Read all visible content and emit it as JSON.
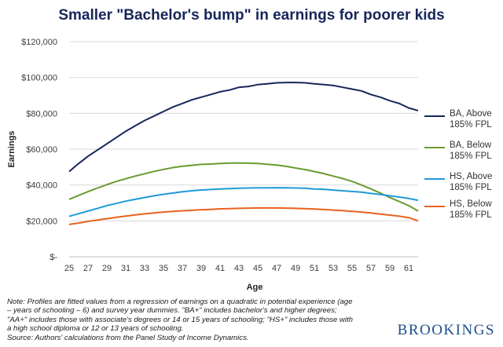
{
  "chart_data": {
    "type": "line",
    "title": "Smaller \"Bachelor's bump\" in earnings for poorer kids",
    "xlabel": "Age",
    "ylabel": "Earnings",
    "xlim": [
      25,
      62
    ],
    "ylim": [
      0,
      120000
    ],
    "x_ticks": [
      25,
      27,
      29,
      31,
      33,
      35,
      37,
      39,
      41,
      43,
      45,
      47,
      49,
      51,
      53,
      55,
      57,
      59,
      61
    ],
    "y_ticks": [
      0,
      20000,
      40000,
      60000,
      80000,
      100000,
      120000
    ],
    "y_tick_labels": [
      "$-",
      "$20,000",
      "$40,000",
      "$60,000",
      "$80,000",
      "$100,000",
      "$120,000"
    ],
    "grid": "horizontal",
    "legend_position": "right",
    "x": [
      25,
      26,
      27,
      28,
      29,
      30,
      31,
      32,
      33,
      34,
      35,
      36,
      37,
      38,
      39,
      40,
      41,
      42,
      43,
      44,
      45,
      46,
      47,
      48,
      49,
      50,
      51,
      52,
      53,
      54,
      55,
      56,
      57,
      58,
      59,
      60,
      61,
      62
    ],
    "series": [
      {
        "name": "BA, Above 185% FPL",
        "legend_lines": [
          "BA, Above",
          "185% FPL"
        ],
        "color": "#16265a",
        "values": [
          47500,
          52000,
          56000,
          59500,
          63000,
          66500,
          70000,
          73000,
          76000,
          78500,
          81000,
          83500,
          85500,
          87500,
          89000,
          90500,
          92000,
          93000,
          94500,
          95000,
          96000,
          96500,
          97000,
          97200,
          97200,
          97000,
          96500,
          96000,
          95500,
          94500,
          93500,
          92500,
          90500,
          89000,
          87000,
          85500,
          83000,
          81500
        ]
      },
      {
        "name": "BA, Below 185% FPL",
        "legend_lines": [
          "BA, Below",
          "185% FPL"
        ],
        "color": "#6a9a2f",
        "values": [
          32000,
          34200,
          36300,
          38300,
          40200,
          42000,
          43500,
          45000,
          46300,
          47600,
          48700,
          49700,
          50500,
          51000,
          51500,
          51700,
          52000,
          52200,
          52300,
          52200,
          52000,
          51600,
          51100,
          50400,
          49500,
          48600,
          47500,
          46400,
          45000,
          43600,
          42000,
          40000,
          37800,
          35500,
          33000,
          30800,
          28500,
          25500
        ]
      },
      {
        "name": "HS, Above 185% FPL",
        "legend_lines": [
          "HS, Above",
          "185% FPL"
        ],
        "color": "#1f9ad6",
        "values": [
          22500,
          24000,
          25500,
          27000,
          28500,
          29700,
          31000,
          32000,
          33000,
          34000,
          34800,
          35500,
          36200,
          36800,
          37200,
          37500,
          37800,
          38000,
          38200,
          38300,
          38400,
          38400,
          38500,
          38400,
          38300,
          38200,
          37800,
          37600,
          37200,
          36800,
          36400,
          36000,
          35300,
          34700,
          34000,
          33300,
          32500,
          31500
        ]
      },
      {
        "name": "HS, Below 185% FPL",
        "legend_lines": [
          "HS, Below",
          "185% FPL"
        ],
        "color": "#e8621c",
        "values": [
          18000,
          18800,
          19700,
          20500,
          21200,
          22000,
          22700,
          23300,
          23900,
          24400,
          24900,
          25300,
          25600,
          25900,
          26200,
          26400,
          26700,
          26800,
          27000,
          27100,
          27200,
          27200,
          27200,
          27100,
          27000,
          26800,
          26600,
          26300,
          26000,
          25700,
          25300,
          24900,
          24400,
          23800,
          23200,
          22600,
          21800,
          20000
        ]
      }
    ]
  },
  "note_lines": [
    "Note: Profiles are fitted values from a regression of earnings on a quadratic in potential experience (age",
    "– years of schooling – 6) and survey year dummies. \"BA+\" includes bachelor's and higher degrees;",
    "\"AA+\" includes those with associate's degrees or 14 or 15 years of schooling; \"HS+\" includes those with",
    "a high school diploma or 12 or 13 years of schooling.",
    "Source: Authors' calculations from the Panel Study of Income Dynamics."
  ],
  "brand": "BROOKINGS"
}
